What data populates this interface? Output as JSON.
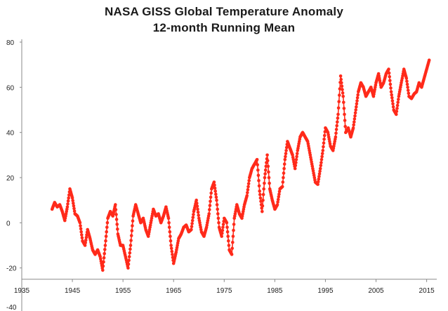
{
  "chart_data": {
    "type": "line",
    "title": "NASA GISS Global Temperature Anomaly",
    "subtitle": "12-month Running Mean",
    "xlabel": "",
    "ylabel": "",
    "xlim": [
      1935,
      2017
    ],
    "ylim": [
      -40,
      80
    ],
    "x_tick_labels": [
      "1935",
      "1945",
      "1955",
      "1965",
      "1975",
      "1985",
      "1995",
      "2005",
      "2015"
    ],
    "y_tick_labels": [
      "-40",
      "-20",
      "0",
      "20",
      "40",
      "60",
      "80"
    ],
    "grid": false,
    "legend": "none",
    "series_color": "#ff2a1a",
    "series": [
      {
        "values_xy": [
          [
            1941.0,
            6
          ],
          [
            1941.5,
            9
          ],
          [
            1942.0,
            7
          ],
          [
            1942.5,
            8
          ],
          [
            1943.0,
            5
          ],
          [
            1943.5,
            1
          ],
          [
            1944.0,
            7
          ],
          [
            1944.5,
            15
          ],
          [
            1945.0,
            11
          ],
          [
            1945.5,
            4
          ],
          [
            1946.0,
            3
          ],
          [
            1946.5,
            0
          ],
          [
            1947.0,
            -8
          ],
          [
            1947.5,
            -10
          ],
          [
            1948.0,
            -3
          ],
          [
            1948.5,
            -7
          ],
          [
            1949.0,
            -12
          ],
          [
            1949.5,
            -14
          ],
          [
            1950.0,
            -12
          ],
          [
            1950.5,
            -15
          ],
          [
            1951.0,
            -21
          ],
          [
            1951.5,
            -10
          ],
          [
            1952.0,
            2
          ],
          [
            1952.5,
            5
          ],
          [
            1953.0,
            3
          ],
          [
            1953.5,
            8
          ],
          [
            1954.0,
            -5
          ],
          [
            1954.5,
            -10
          ],
          [
            1955.0,
            -10
          ],
          [
            1955.5,
            -15
          ],
          [
            1956.0,
            -20
          ],
          [
            1956.5,
            -10
          ],
          [
            1957.0,
            3
          ],
          [
            1957.5,
            8
          ],
          [
            1958.0,
            4
          ],
          [
            1958.5,
            0
          ],
          [
            1959.0,
            2
          ],
          [
            1959.5,
            -3
          ],
          [
            1960.0,
            -6
          ],
          [
            1960.5,
            0
          ],
          [
            1961.0,
            6
          ],
          [
            1961.5,
            3
          ],
          [
            1962.0,
            4
          ],
          [
            1962.5,
            0
          ],
          [
            1963.0,
            3
          ],
          [
            1963.5,
            7
          ],
          [
            1964.0,
            2
          ],
          [
            1964.5,
            -10
          ],
          [
            1965.0,
            -18
          ],
          [
            1965.5,
            -13
          ],
          [
            1966.0,
            -7
          ],
          [
            1966.5,
            -5
          ],
          [
            1967.0,
            -2
          ],
          [
            1967.5,
            -1
          ],
          [
            1968.0,
            -4
          ],
          [
            1968.5,
            -3
          ],
          [
            1969.0,
            5
          ],
          [
            1969.5,
            10
          ],
          [
            1970.0,
            2
          ],
          [
            1970.5,
            -4
          ],
          [
            1971.0,
            -6
          ],
          [
            1971.5,
            -2
          ],
          [
            1972.0,
            4
          ],
          [
            1972.5,
            15
          ],
          [
            1973.0,
            18
          ],
          [
            1973.5,
            10
          ],
          [
            1974.0,
            -2
          ],
          [
            1974.5,
            -6
          ],
          [
            1975.0,
            2
          ],
          [
            1975.5,
            0
          ],
          [
            1976.0,
            -12
          ],
          [
            1976.5,
            -14
          ],
          [
            1977.0,
            2
          ],
          [
            1977.5,
            8
          ],
          [
            1978.0,
            4
          ],
          [
            1978.5,
            2
          ],
          [
            1979.0,
            8
          ],
          [
            1979.5,
            12
          ],
          [
            1980.0,
            20
          ],
          [
            1980.5,
            24
          ],
          [
            1981.0,
            26
          ],
          [
            1981.5,
            28
          ],
          [
            1982.0,
            14
          ],
          [
            1982.5,
            5
          ],
          [
            1983.0,
            20
          ],
          [
            1983.5,
            30
          ],
          [
            1984.0,
            15
          ],
          [
            1984.5,
            10
          ],
          [
            1985.0,
            6
          ],
          [
            1985.5,
            8
          ],
          [
            1986.0,
            15
          ],
          [
            1986.5,
            16
          ],
          [
            1987.0,
            28
          ],
          [
            1987.5,
            36
          ],
          [
            1988.0,
            33
          ],
          [
            1988.5,
            30
          ],
          [
            1989.0,
            24
          ],
          [
            1989.5,
            32
          ],
          [
            1990.0,
            38
          ],
          [
            1990.5,
            40
          ],
          [
            1991.0,
            38
          ],
          [
            1991.5,
            36
          ],
          [
            1992.0,
            30
          ],
          [
            1992.5,
            24
          ],
          [
            1993.0,
            18
          ],
          [
            1993.5,
            17
          ],
          [
            1994.0,
            24
          ],
          [
            1994.5,
            32
          ],
          [
            1995.0,
            42
          ],
          [
            1995.5,
            40
          ],
          [
            1996.0,
            34
          ],
          [
            1996.5,
            32
          ],
          [
            1997.0,
            38
          ],
          [
            1997.5,
            48
          ],
          [
            1998.0,
            65
          ],
          [
            1998.5,
            56
          ],
          [
            1999.0,
            40
          ],
          [
            1999.5,
            42
          ],
          [
            2000.0,
            38
          ],
          [
            2000.5,
            42
          ],
          [
            2001.0,
            50
          ],
          [
            2001.5,
            58
          ],
          [
            2002.0,
            62
          ],
          [
            2002.5,
            60
          ],
          [
            2003.0,
            56
          ],
          [
            2003.5,
            58
          ],
          [
            2004.0,
            60
          ],
          [
            2004.5,
            56
          ],
          [
            2005.0,
            62
          ],
          [
            2005.5,
            66
          ],
          [
            2006.0,
            60
          ],
          [
            2006.5,
            62
          ],
          [
            2007.0,
            66
          ],
          [
            2007.5,
            68
          ],
          [
            2008.0,
            58
          ],
          [
            2008.5,
            50
          ],
          [
            2009.0,
            48
          ],
          [
            2009.5,
            56
          ],
          [
            2010.0,
            62
          ],
          [
            2010.5,
            68
          ],
          [
            2011.0,
            64
          ],
          [
            2011.5,
            56
          ],
          [
            2012.0,
            55
          ],
          [
            2012.5,
            57
          ],
          [
            2013.0,
            58
          ],
          [
            2013.5,
            62
          ],
          [
            2014.0,
            60
          ],
          [
            2014.5,
            64
          ],
          [
            2015.0,
            68
          ],
          [
            2015.5,
            72
          ]
        ]
      }
    ]
  }
}
